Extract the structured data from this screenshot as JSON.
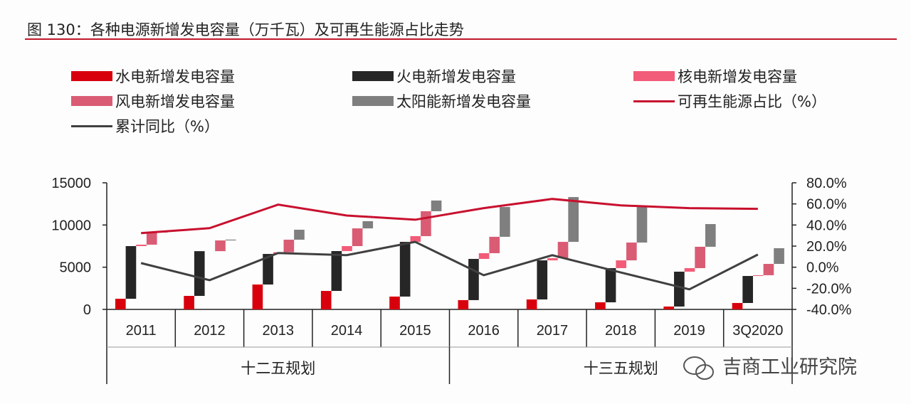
{
  "chart_data": {
    "type": "bar",
    "title": "图 130：各种电源新增发电容量（万千瓦）及可再生能源占比走势",
    "categories": [
      "2011",
      "2012",
      "2013",
      "2014",
      "2015",
      "2016",
      "2017",
      "2018",
      "2019",
      "3Q2020"
    ],
    "groups": [
      {
        "label": "十二五规划",
        "span": [
          0,
          4
        ]
      },
      {
        "label": "十三五规划",
        "span": [
          5,
          9
        ]
      }
    ],
    "bar_layout": "waterfall (each series floats on top of the cumulative previous series)",
    "series": [
      {
        "name": "水电新增发电容量",
        "type": "bar",
        "axis": "left",
        "color": "#d9000d",
        "values": [
          1260,
          1600,
          2950,
          2190,
          1520,
          1100,
          1180,
          840,
          340,
          760
        ]
      },
      {
        "name": "火电新增发电容量",
        "type": "bar",
        "axis": "left",
        "color": "#262626",
        "values": [
          6240,
          5300,
          3620,
          4720,
          6480,
          4880,
          4630,
          4050,
          4130,
          3200
        ]
      },
      {
        "name": "核电新增发电容量",
        "type": "bar",
        "axis": "left",
        "color": "#f25c78",
        "values": [
          170,
          0,
          200,
          590,
          680,
          680,
          260,
          920,
          420,
          90
        ]
      },
      {
        "name": "风电新增发电容量",
        "type": "bar",
        "axis": "left",
        "color": "#d95c74",
        "values": [
          1430,
          1270,
          1490,
          2100,
          2950,
          1940,
          1930,
          2110,
          2530,
          1340
        ]
      },
      {
        "name": "太阳能新增发电容量",
        "type": "bar",
        "axis": "left",
        "color": "#7f7f7f",
        "values": [
          200,
          100,
          1180,
          850,
          1270,
          3530,
          5310,
          4300,
          2690,
          1860
        ]
      },
      {
        "name": "可再生能源占比（%）",
        "type": "line",
        "axis": "right",
        "color": "#c8102e",
        "values": [
          32.3,
          37.0,
          59.3,
          49.0,
          45.0,
          56.0,
          64.7,
          58.6,
          56.0,
          55.3
        ]
      },
      {
        "name": "累计同比（%）",
        "type": "line",
        "axis": "right",
        "color": "#404040",
        "values": [
          3.9,
          -12.3,
          13.4,
          11.4,
          24.0,
          -7.6,
          11.4,
          -5.0,
          -21.0,
          12.0
        ]
      }
    ],
    "y_left": {
      "lim": [
        0,
        15000
      ],
      "ticks": [
        "0",
        "5000",
        "10000",
        "15000"
      ]
    },
    "y_right": {
      "lim": [
        -40,
        80
      ],
      "ticks": [
        "-40.0%",
        "-20.0%",
        "0.0%",
        "20.0%",
        "40.0%",
        "60.0%",
        "80.0%"
      ]
    },
    "legend_placement": "top",
    "grid": false
  },
  "watermark": "吉商工业研究院"
}
